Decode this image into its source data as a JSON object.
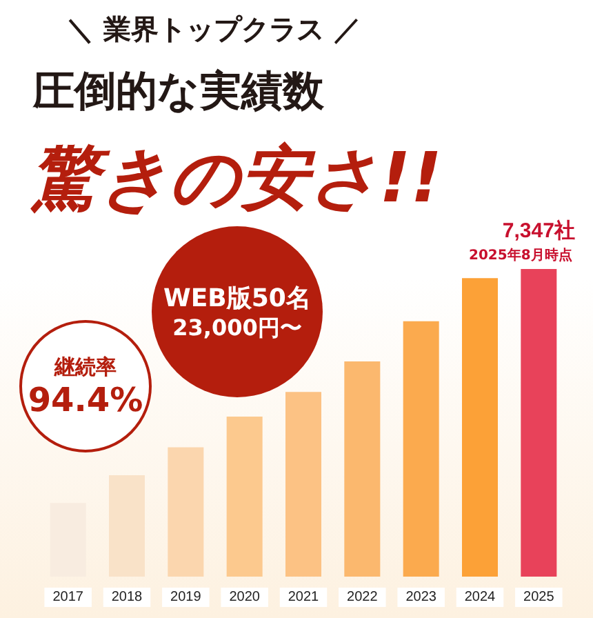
{
  "chart_data": {
    "type": "bar",
    "title": "＼ 業界トップクラス ／",
    "subtitle": "圧倒的な実績数",
    "categories": [
      "2017",
      "2018",
      "2019",
      "2020",
      "2021",
      "2022",
      "2023",
      "2024",
      "2025"
    ],
    "values": [
      1760,
      2420,
      3090,
      3820,
      4410,
      5140,
      6100,
      7130,
      7347
    ],
    "colors": [
      "#f8ece0",
      "#f9e2c8",
      "#fbd6ae",
      "#fcc98e",
      "#fcc284",
      "#fbb86e",
      "#fbaa4e",
      "#fca137",
      "#e8425a"
    ],
    "value_labels": [
      null,
      null,
      null,
      null,
      null,
      null,
      null,
      null,
      "7,347社"
    ],
    "annotations": [
      "驚きの安さ!!",
      "2025年8月時点",
      "継続率",
      "94.4%",
      "WEB版50名",
      "23,000円〜"
    ]
  }
}
